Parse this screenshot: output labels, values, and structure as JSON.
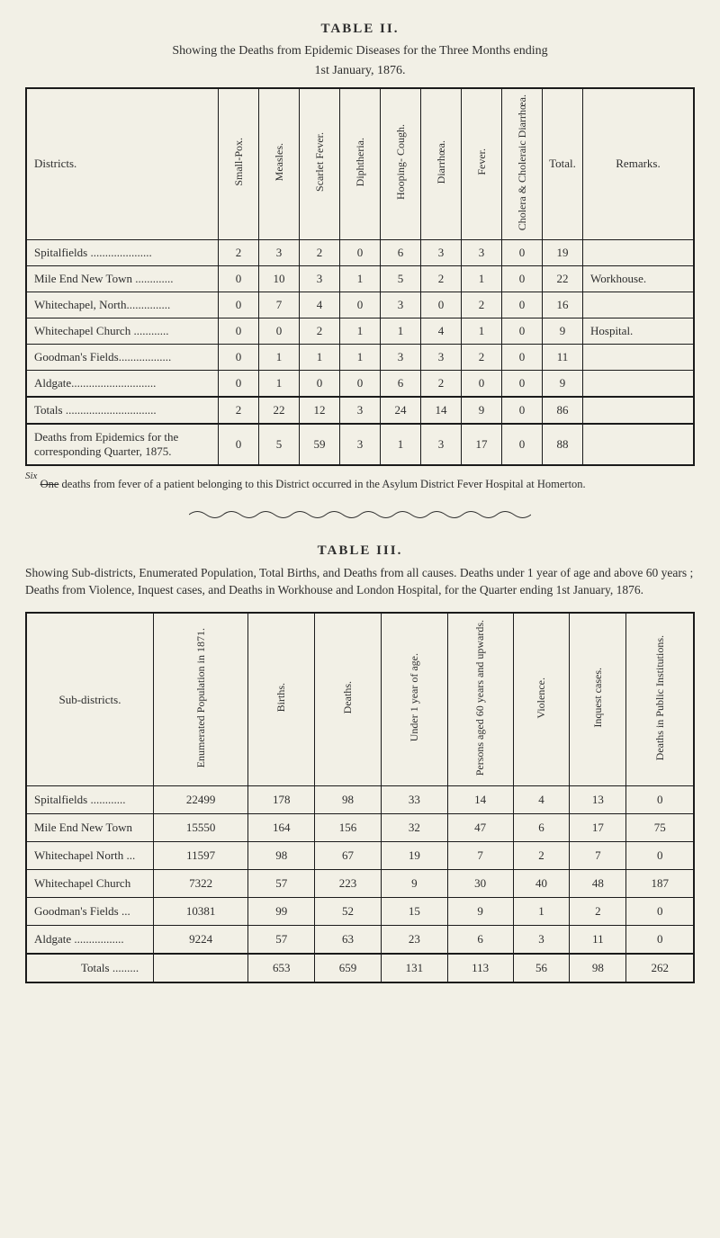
{
  "table2": {
    "title": "TABLE II.",
    "caption": "Showing the Deaths from Epidemic Diseases for the Three Months ending",
    "subcaption": "1st January, 1876.",
    "columns": {
      "district": "Districts.",
      "smallpox": "Small-Pox.",
      "measles": "Measles.",
      "scarlet": "Scarlet Fever.",
      "diphtheria": "Diphtheria.",
      "hooping": "Hooping-\nCough.",
      "diarrhoea": "Diarrhœa.",
      "fever": "Fever.",
      "cholera": "Cholera & Choleraic\nDiarrhœa.",
      "total": "Total.",
      "remarks": "Remarks."
    },
    "rows": [
      {
        "label": "Spitalfields  .....................",
        "v": [
          "2",
          "3",
          "2",
          "0",
          "6",
          "3",
          "3",
          "0",
          "19",
          ""
        ]
      },
      {
        "label": "Mile End New Town .............",
        "v": [
          "0",
          "10",
          "3",
          "1",
          "5",
          "2",
          "1",
          "0",
          "22",
          "Workhouse."
        ]
      },
      {
        "label": "Whitechapel, North...............",
        "v": [
          "0",
          "7",
          "4",
          "0",
          "3",
          "0",
          "2",
          "0",
          "16",
          ""
        ]
      },
      {
        "label": "Whitechapel Church  ............",
        "v": [
          "0",
          "0",
          "2",
          "1",
          "1",
          "4",
          "1",
          "0",
          "9",
          "Hospital."
        ]
      },
      {
        "label": "Goodman's Fields..................",
        "v": [
          "0",
          "1",
          "1",
          "1",
          "3",
          "3",
          "2",
          "0",
          "11",
          ""
        ]
      },
      {
        "label": "Aldgate.............................",
        "v": [
          "0",
          "1",
          "0",
          "0",
          "6",
          "2",
          "0",
          "0",
          "9",
          ""
        ]
      }
    ],
    "totals": {
      "label": "Totals  ...............................",
      "v": [
        "2",
        "22",
        "12",
        "3",
        "24",
        "14",
        "9",
        "0",
        "86",
        ""
      ]
    },
    "epidemics": {
      "label": "Deaths from Epidemics for the corresponding Quarter, 1875.",
      "v": [
        "0",
        "5",
        "59",
        "3",
        "1",
        "3",
        "17",
        "0",
        "88",
        ""
      ]
    },
    "footnote_ins": "Six",
    "footnote_strike": "One",
    "footnote_rest": " deaths from fever of a patient belonging to this District occurred in the Asylum District Fever Hospital at Homerton."
  },
  "table3": {
    "title": "TABLE III.",
    "para": "Showing Sub-districts, Enumerated Population, Total Births, and Deaths from all causes. Deaths under 1 year of age and above 60 years ; Deaths from Violence, Inquest cases, and Deaths in Workhouse and London Hospital, for the Quarter ending 1st January, 1876.",
    "columns": {
      "subdistrict": "Sub-districts.",
      "enum": "Enumerated\nPopulation\nin 1871.",
      "births": "Births.",
      "deaths": "Deaths.",
      "under1": "Under 1 year\nof age.",
      "over60": "Persons aged\n60 years and\nupwards.",
      "violence": "Violence.",
      "inquest": "Inquest cases.",
      "inst": "Deaths in\nPublic\nInstitutions."
    },
    "rows": [
      {
        "label": "Spitalfields  ............",
        "v": [
          "22499",
          "178",
          "98",
          "33",
          "14",
          "4",
          "13",
          "0"
        ]
      },
      {
        "label": "Mile End New Town",
        "v": [
          "15550",
          "164",
          "156",
          "32",
          "47",
          "6",
          "17",
          "75"
        ]
      },
      {
        "label": "Whitechapel North ...",
        "v": [
          "11597",
          "98",
          "67",
          "19",
          "7",
          "2",
          "7",
          "0"
        ]
      },
      {
        "label": "Whitechapel Church",
        "v": [
          "7322",
          "57",
          "223",
          "9",
          "30",
          "40",
          "48",
          "187"
        ]
      },
      {
        "label": "Goodman's Fields  ...",
        "v": [
          "10381",
          "99",
          "52",
          "15",
          "9",
          "1",
          "2",
          "0"
        ]
      },
      {
        "label": "Aldgate .................",
        "v": [
          "9224",
          "57",
          "63",
          "23",
          "6",
          "3",
          "11",
          "0"
        ]
      }
    ],
    "totals": {
      "label": "Totals .........",
      "v": [
        "",
        "653",
        "659",
        "131",
        "113",
        "56",
        "98",
        "262"
      ]
    }
  }
}
